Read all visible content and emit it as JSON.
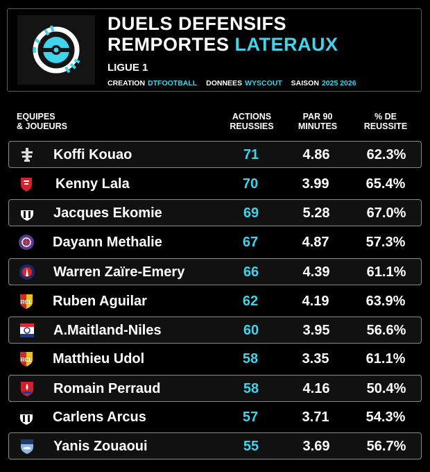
{
  "header": {
    "title_line1": "DUELS DEFENSIFS",
    "title_line2_white": "REMPORTES",
    "title_line2_accent": "LATERAUX",
    "league": "LIGUE 1",
    "credit_label": "CREATION",
    "credit_value": "DTFOOTBALL",
    "data_label": "DONNEES",
    "data_value": "WYSCOUT",
    "season_label": "SAISON",
    "season_value": "2025 2026"
  },
  "columns": {
    "player_l1": "EQUIPES",
    "player_l2": "& JOUEURS",
    "actions_l1": "ACTIONS",
    "actions_l2": "REUSSIES",
    "per90_l1": "PAR 90",
    "per90_l2": "MINUTES",
    "pct_l1": "% DE",
    "pct_l2": "REUSSITE"
  },
  "colors": {
    "accent": "#3fd4ec",
    "background": "#000000"
  },
  "rows": [
    {
      "player": "Koffi Kouao",
      "club_icon": "metz-crest-icon",
      "actions": "71",
      "per90": "4.86",
      "pct": "62.3%"
    },
    {
      "player": "Kenny Lala",
      "club_icon": "brest-crest-icon",
      "actions": "70",
      "per90": "3.99",
      "pct": "65.4%"
    },
    {
      "player": "Jacques Ekomie",
      "club_icon": "angers-crest-icon",
      "actions": "69",
      "per90": "5.28",
      "pct": "67.0%"
    },
    {
      "player": "Dayann Methalie",
      "club_icon": "toulouse-crest-icon",
      "actions": "67",
      "per90": "4.87",
      "pct": "57.3%"
    },
    {
      "player": "Warren Zaïre-Emery",
      "club_icon": "psg-crest-icon",
      "actions": "66",
      "per90": "4.39",
      "pct": "61.1%"
    },
    {
      "player": "Ruben Aguilar",
      "club_icon": "lens-crest-icon",
      "actions": "62",
      "per90": "4.19",
      "pct": "63.9%"
    },
    {
      "player": "A.Maitland-Niles",
      "club_icon": "lyon-crest-icon",
      "actions": "60",
      "per90": "3.95",
      "pct": "56.6%"
    },
    {
      "player": "Matthieu Udol",
      "club_icon": "lens-crest-icon",
      "actions": "58",
      "per90": "3.35",
      "pct": "61.1%"
    },
    {
      "player": "Romain Perraud",
      "club_icon": "lille-crest-icon",
      "actions": "58",
      "per90": "4.16",
      "pct": "50.4%"
    },
    {
      "player": "Carlens Arcus",
      "club_icon": "angers-crest-icon",
      "actions": "57",
      "per90": "3.71",
      "pct": "54.3%"
    },
    {
      "player": "Yanis Zouaoui",
      "club_icon": "le-havre-crest-icon",
      "actions": "55",
      "per90": "3.69",
      "pct": "56.7%"
    }
  ]
}
